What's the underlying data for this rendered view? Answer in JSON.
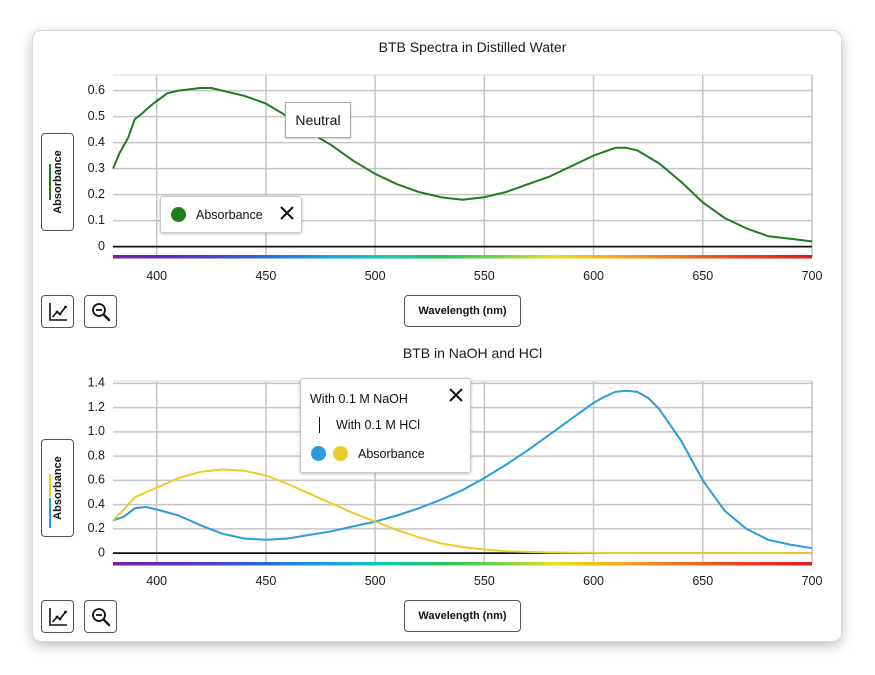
{
  "chart_data": [
    {
      "type": "line",
      "title": "BTB Spectra in Distilled Water",
      "xlabel": "Wavelength (nm)",
      "ylabel": "Absorbance",
      "xlim": [
        380,
        700
      ],
      "ylim": [
        -0.04,
        0.66
      ],
      "x_ticks": [
        400,
        450,
        500,
        550,
        600,
        650,
        700
      ],
      "y_ticks": [
        0,
        0.1,
        0.2,
        0.3,
        0.4,
        0.5,
        0.6
      ],
      "y_tick_labels": [
        "0",
        "0.1",
        "0.2",
        "0.3",
        "0.4",
        "0.5",
        "0.6"
      ],
      "grid": true,
      "series": [
        {
          "name": "Absorbance",
          "color": "#1e7d1e",
          "x": [
            380,
            383,
            387,
            390,
            393,
            397,
            400,
            405,
            410,
            420,
            425,
            430,
            440,
            450,
            460,
            470,
            480,
            490,
            500,
            510,
            520,
            530,
            540,
            550,
            560,
            570,
            580,
            590,
            600,
            610,
            615,
            620,
            630,
            640,
            650,
            660,
            670,
            680,
            690,
            700
          ],
          "y": [
            0.3,
            0.36,
            0.42,
            0.49,
            0.51,
            0.54,
            0.56,
            0.59,
            0.6,
            0.61,
            0.61,
            0.6,
            0.58,
            0.55,
            0.5,
            0.44,
            0.39,
            0.33,
            0.28,
            0.24,
            0.21,
            0.19,
            0.18,
            0.19,
            0.21,
            0.24,
            0.27,
            0.31,
            0.35,
            0.38,
            0.38,
            0.37,
            0.32,
            0.25,
            0.17,
            0.11,
            0.07,
            0.04,
            0.03,
            0.02
          ]
        }
      ],
      "legend": {
        "placement": "bottom-left",
        "entries": [
          "Absorbance"
        ]
      },
      "annotations": [
        {
          "text": "Neutral"
        }
      ]
    },
    {
      "type": "line",
      "title": "BTB in NaOH and HCl",
      "xlabel": "Wavelength (nm)",
      "ylabel": "Absorbance",
      "xlim": [
        380,
        700
      ],
      "ylim": [
        -0.09,
        1.42
      ],
      "x_ticks": [
        400,
        450,
        500,
        550,
        600,
        650,
        700
      ],
      "y_ticks": [
        0,
        0.2,
        0.4,
        0.6,
        0.8,
        1.0,
        1.2,
        1.4
      ],
      "y_tick_labels": [
        "0",
        "0.2",
        "0.4",
        "0.6",
        "0.8",
        "1.0",
        "1.2",
        "1.4"
      ],
      "grid": true,
      "series": [
        {
          "name": "With 0.1 M NaOH",
          "color": "#2b9be0",
          "x": [
            380,
            385,
            390,
            395,
            400,
            410,
            420,
            430,
            440,
            450,
            460,
            470,
            480,
            490,
            500,
            510,
            520,
            530,
            540,
            550,
            560,
            570,
            580,
            590,
            600,
            605,
            610,
            615,
            620,
            625,
            630,
            640,
            650,
            660,
            670,
            680,
            690,
            700
          ],
          "y": [
            0.27,
            0.3,
            0.37,
            0.38,
            0.36,
            0.31,
            0.23,
            0.16,
            0.12,
            0.11,
            0.12,
            0.15,
            0.18,
            0.22,
            0.26,
            0.31,
            0.37,
            0.44,
            0.52,
            0.62,
            0.73,
            0.85,
            0.98,
            1.11,
            1.24,
            1.29,
            1.33,
            1.34,
            1.33,
            1.28,
            1.19,
            0.93,
            0.6,
            0.35,
            0.2,
            0.11,
            0.07,
            0.04
          ]
        },
        {
          "name": "With 0.1 M HCl",
          "color": "#eccb2a",
          "x": [
            380,
            385,
            390,
            395,
            400,
            410,
            420,
            430,
            440,
            450,
            460,
            470,
            480,
            490,
            500,
            510,
            520,
            530,
            540,
            550,
            560,
            570,
            580,
            590,
            600,
            620,
            640,
            660,
            680,
            700
          ],
          "y": [
            0.27,
            0.36,
            0.46,
            0.5,
            0.54,
            0.62,
            0.67,
            0.69,
            0.68,
            0.64,
            0.57,
            0.49,
            0.41,
            0.33,
            0.26,
            0.19,
            0.13,
            0.08,
            0.05,
            0.03,
            0.015,
            0.01,
            0.005,
            0.003,
            0.002,
            0.0,
            0.0,
            0.0,
            0.0,
            0.0
          ]
        }
      ],
      "legend": {
        "placement": "top-center",
        "entries": [
          "With 0.1 M NaOH",
          "With 0.1 M HCl",
          "Absorbance"
        ]
      }
    }
  ],
  "legend1": {
    "label": "Absorbance",
    "dot_color": "#1e7d1e"
  },
  "annotation1": {
    "label": "Neutral"
  },
  "legend2": {
    "line1": "With 0.1 M NaOH",
    "line2": "With 0.1 M HCl",
    "label": "Absorbance",
    "dot_colors": [
      "#2b9be0",
      "#eccb2a"
    ]
  },
  "controls": {
    "xlabel_button": "Wavelength (nm)",
    "ylabel_button": "Absorbance",
    "icons": [
      "line-graph-icon",
      "zoom-out-icon",
      "close-icon"
    ]
  }
}
